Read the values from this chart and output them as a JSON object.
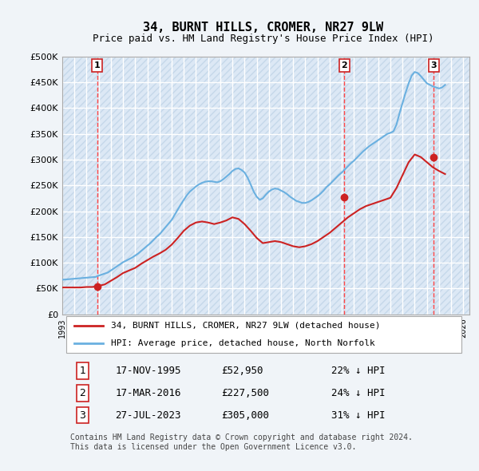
{
  "title": "34, BURNT HILLS, CROMER, NR27 9LW",
  "subtitle": "Price paid vs. HM Land Registry's House Price Index (HPI)",
  "ylabel_ticks": [
    "£0",
    "£50K",
    "£100K",
    "£150K",
    "£200K",
    "£250K",
    "£300K",
    "£350K",
    "£400K",
    "£450K",
    "£500K"
  ],
  "ytick_values": [
    0,
    50000,
    100000,
    150000,
    200000,
    250000,
    300000,
    350000,
    400000,
    450000,
    500000
  ],
  "xmin": 1993.0,
  "xmax": 2026.5,
  "ymin": 0,
  "ymax": 500000,
  "background_color": "#f0f4f8",
  "plot_bg_color": "#dce8f5",
  "grid_color": "#ffffff",
  "hpi_color": "#6ab0e0",
  "price_color": "#cc2222",
  "vline_color": "#ff4444",
  "transaction_points": [
    {
      "year": 1995.88,
      "price": 52950,
      "label": "1"
    },
    {
      "year": 2016.21,
      "price": 227500,
      "label": "2"
    },
    {
      "year": 2023.57,
      "price": 305000,
      "label": "3"
    }
  ],
  "legend_line1": "34, BURNT HILLS, CROMER, NR27 9LW (detached house)",
  "legend_line2": "HPI: Average price, detached house, North Norfolk",
  "table_rows": [
    {
      "num": "1",
      "date": "17-NOV-1995",
      "price": "£52,950",
      "hpi": "22% ↓ HPI"
    },
    {
      "num": "2",
      "date": "17-MAR-2016",
      "price": "£227,500",
      "hpi": "24% ↓ HPI"
    },
    {
      "num": "3",
      "date": "27-JUL-2023",
      "price": "£305,000",
      "hpi": "31% ↓ HPI"
    }
  ],
  "footer": "Contains HM Land Registry data © Crown copyright and database right 2024.\nThis data is licensed under the Open Government Licence v3.0.",
  "hpi_data_x": [
    1993,
    1993.25,
    1993.5,
    1993.75,
    1994,
    1994.25,
    1994.5,
    1994.75,
    1995,
    1995.25,
    1995.5,
    1995.75,
    1996,
    1996.25,
    1996.5,
    1996.75,
    1997,
    1997.25,
    1997.5,
    1997.75,
    1998,
    1998.25,
    1998.5,
    1998.75,
    1999,
    1999.25,
    1999.5,
    1999.75,
    2000,
    2000.25,
    2000.5,
    2000.75,
    2001,
    2001.25,
    2001.5,
    2001.75,
    2002,
    2002.25,
    2002.5,
    2002.75,
    2003,
    2003.25,
    2003.5,
    2003.75,
    2004,
    2004.25,
    2004.5,
    2004.75,
    2005,
    2005.25,
    2005.5,
    2005.75,
    2006,
    2006.25,
    2006.5,
    2006.75,
    2007,
    2007.25,
    2007.5,
    2007.75,
    2008,
    2008.25,
    2008.5,
    2008.75,
    2009,
    2009.25,
    2009.5,
    2009.75,
    2010,
    2010.25,
    2010.5,
    2010.75,
    2011,
    2011.25,
    2011.5,
    2011.75,
    2012,
    2012.25,
    2012.5,
    2012.75,
    2013,
    2013.25,
    2013.5,
    2013.75,
    2014,
    2014.25,
    2014.5,
    2014.75,
    2015,
    2015.25,
    2015.5,
    2015.75,
    2016,
    2016.25,
    2016.5,
    2016.75,
    2017,
    2017.25,
    2017.5,
    2017.75,
    2018,
    2018.25,
    2018.5,
    2018.75,
    2019,
    2019.25,
    2019.5,
    2019.75,
    2020,
    2020.25,
    2020.5,
    2020.75,
    2021,
    2021.25,
    2021.5,
    2021.75,
    2022,
    2022.25,
    2022.5,
    2022.75,
    2023,
    2023.25,
    2023.5,
    2023.75,
    2024,
    2024.25,
    2024.5
  ],
  "hpi_data_y": [
    67000,
    67500,
    68000,
    68500,
    69000,
    69500,
    70000,
    70500,
    71000,
    71500,
    72000,
    72500,
    75000,
    77000,
    79000,
    81000,
    85000,
    89000,
    93000,
    97000,
    101000,
    104000,
    107000,
    110000,
    114000,
    118000,
    123000,
    128000,
    133000,
    138000,
    144000,
    150000,
    155000,
    162000,
    169000,
    176000,
    183000,
    193000,
    203000,
    213000,
    222000,
    231000,
    238000,
    243000,
    248000,
    252000,
    255000,
    257000,
    258000,
    258000,
    257000,
    256000,
    258000,
    262000,
    267000,
    272000,
    278000,
    282000,
    283000,
    280000,
    275000,
    265000,
    252000,
    238000,
    228000,
    222000,
    225000,
    232000,
    238000,
    242000,
    244000,
    243000,
    240000,
    237000,
    233000,
    228000,
    224000,
    220000,
    218000,
    216000,
    216000,
    218000,
    221000,
    225000,
    229000,
    234000,
    240000,
    247000,
    252000,
    258000,
    264000,
    270000,
    275000,
    281000,
    287000,
    293000,
    298000,
    304000,
    310000,
    316000,
    321000,
    326000,
    330000,
    334000,
    338000,
    342000,
    346000,
    350000,
    352000,
    355000,
    368000,
    390000,
    410000,
    430000,
    448000,
    463000,
    470000,
    468000,
    462000,
    455000,
    448000,
    445000,
    442000,
    440000,
    438000,
    440000,
    445000
  ],
  "price_series_x": [
    1993,
    1993.5,
    1994,
    1994.5,
    1995,
    1995.5,
    1996,
    1996.5,
    1997,
    1997.5,
    1998,
    1998.5,
    1999,
    1999.5,
    2000,
    2000.5,
    2001,
    2001.5,
    2002,
    2002.5,
    2003,
    2003.5,
    2004,
    2004.5,
    2005,
    2005.5,
    2006,
    2006.5,
    2007,
    2007.5,
    2008,
    2008.5,
    2009,
    2009.5,
    2010,
    2010.5,
    2011,
    2011.5,
    2012,
    2012.5,
    2013,
    2013.5,
    2014,
    2014.5,
    2015,
    2015.5,
    2016,
    2016.5,
    2017,
    2017.5,
    2018,
    2018.5,
    2019,
    2019.5,
    2020,
    2020.5,
    2021,
    2021.5,
    2022,
    2022.5,
    2023,
    2023.5,
    2024,
    2024.5
  ],
  "price_series_y": [
    52000,
    52000,
    52000,
    52000,
    52950,
    53000,
    55000,
    58000,
    65000,
    72000,
    80000,
    85000,
    90000,
    98000,
    105000,
    112000,
    118000,
    125000,
    135000,
    148000,
    162000,
    172000,
    178000,
    180000,
    178000,
    175000,
    178000,
    182000,
    188000,
    185000,
    175000,
    162000,
    148000,
    138000,
    140000,
    142000,
    140000,
    136000,
    132000,
    130000,
    132000,
    136000,
    142000,
    150000,
    158000,
    168000,
    178000,
    188000,
    196000,
    204000,
    210000,
    214000,
    218000,
    222000,
    226000,
    245000,
    270000,
    295000,
    310000,
    305000,
    295000,
    285000,
    278000,
    272000
  ]
}
